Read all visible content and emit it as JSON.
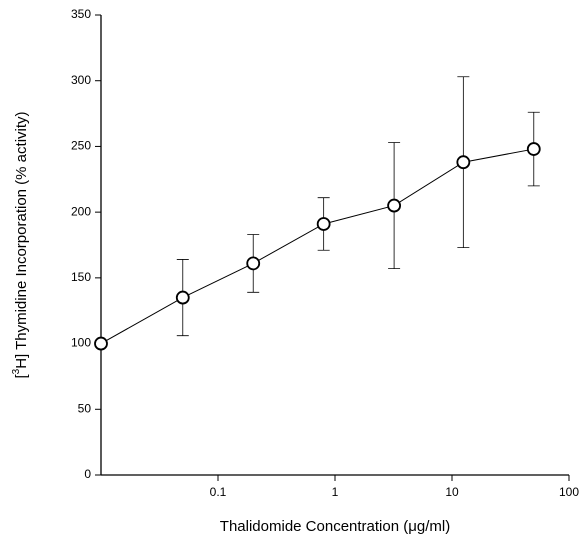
{
  "chart_data": {
    "type": "line",
    "x_label": "Thalidomide Concentration (μg/ml)",
    "y_label": {
      "prefix": "[",
      "sup": "3",
      "rest": "H] Thymidine Incorporation (% activity)"
    },
    "x_scale": "log",
    "xlim": [
      0.01,
      100
    ],
    "xticks": [
      0.1,
      1,
      10,
      100
    ],
    "ylim": [
      0,
      350
    ],
    "yticks": [
      0,
      50,
      100,
      150,
      200,
      250,
      300,
      350
    ],
    "series": [
      {
        "color": "#000000",
        "x": [
          0.01,
          0.05,
          0.2,
          0.8,
          3.2,
          12.5,
          50
        ],
        "values": [
          100,
          135,
          161,
          191,
          205,
          238,
          248
        ],
        "errors": [
          null,
          29,
          22,
          20,
          48,
          65,
          28
        ]
      }
    ]
  }
}
